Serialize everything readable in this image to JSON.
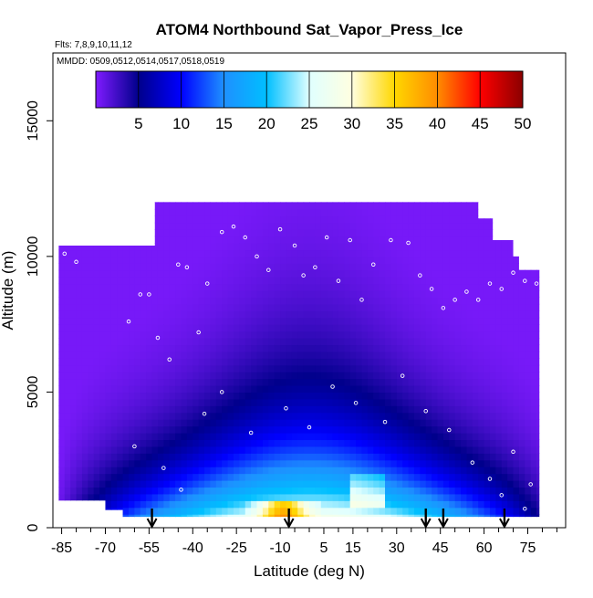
{
  "chart_data": {
    "type": "heatmap",
    "title": "ATOM4 Northbound Sat_Vapor_Press_Ice",
    "flights_label": "Flts: 7,8,9,10,11,12",
    "dates_label": "MMDD: 0509,0512,0514,0517,0518,0519",
    "xlabel": "Latitude (deg N)",
    "ylabel": "Altitude (m)",
    "xlim": [
      -88,
      88
    ],
    "ylim": [
      0,
      17500
    ],
    "x_ticks": [
      -85,
      -70,
      -55,
      -40,
      -25,
      -10,
      5,
      15,
      30,
      45,
      60,
      75
    ],
    "x_minor_ticks": [
      -80,
      -75,
      -65,
      -60,
      -50,
      -45,
      -35,
      -30,
      -20,
      -15,
      -5,
      0,
      10,
      20,
      25,
      35,
      40,
      50,
      55,
      65,
      70,
      80,
      85
    ],
    "y_ticks": [
      0,
      5000,
      10000,
      15000
    ],
    "colorbar": {
      "ticks": [
        5,
        10,
        15,
        20,
        25,
        30,
        35,
        40,
        45,
        50
      ],
      "range": [
        0,
        50
      ],
      "colors": [
        "#7f1bff",
        "#00008b",
        "#0000ff",
        "#1e90ff",
        "#00bfff",
        "#e0ffff",
        "#ffffe0",
        "#ffd700",
        "#ff8c00",
        "#ff0000",
        "#8b0000"
      ]
    },
    "profile_markers_latitude": [
      -54,
      -7,
      40,
      46,
      67
    ],
    "ceiling_profile": [
      [
        -86,
        10400
      ],
      [
        -70,
        10400
      ],
      [
        -55,
        10400
      ],
      [
        -53,
        12000
      ],
      [
        -40,
        12000
      ],
      [
        -25,
        12000
      ],
      [
        -10,
        12000
      ],
      [
        5,
        12000
      ],
      [
        15,
        12000
      ],
      [
        30,
        12000
      ],
      [
        45,
        12000
      ],
      [
        56,
        12000
      ],
      [
        58,
        11400
      ],
      [
        63,
        10600
      ],
      [
        70,
        10000
      ],
      [
        72,
        9500
      ],
      [
        79,
        9500
      ]
    ],
    "floor_profile": [
      [
        -86,
        1000
      ],
      [
        -70,
        1000
      ],
      [
        -64,
        650
      ],
      [
        -53,
        400
      ],
      [
        60,
        400
      ],
      [
        79,
        400
      ]
    ],
    "sample_points": [
      [
        -84,
        10100
      ],
      [
        -80,
        9800
      ],
      [
        -76,
        10500
      ],
      [
        -70,
        10700
      ],
      [
        -62,
        7600
      ],
      [
        -58,
        8600
      ],
      [
        -55,
        8600
      ],
      [
        -52,
        7000
      ],
      [
        -48,
        6200
      ],
      [
        -45,
        9700
      ],
      [
        -42,
        9600
      ],
      [
        -38,
        7200
      ],
      [
        -35,
        9000
      ],
      [
        -30,
        10900
      ],
      [
        -26,
        11100
      ],
      [
        -22,
        10700
      ],
      [
        -18,
        10000
      ],
      [
        -14,
        9500
      ],
      [
        -10,
        11000
      ],
      [
        -5,
        10400
      ],
      [
        -2,
        9300
      ],
      [
        2,
        9600
      ],
      [
        6,
        10700
      ],
      [
        10,
        9100
      ],
      [
        14,
        10600
      ],
      [
        18,
        8400
      ],
      [
        22,
        9700
      ],
      [
        28,
        10600
      ],
      [
        34,
        10500
      ],
      [
        38,
        9300
      ],
      [
        42,
        8800
      ],
      [
        46,
        8100
      ],
      [
        50,
        8400
      ],
      [
        54,
        8700
      ],
      [
        58,
        8400
      ],
      [
        62,
        9000
      ],
      [
        66,
        8800
      ],
      [
        70,
        9400
      ],
      [
        74,
        9100
      ],
      [
        78,
        9000
      ],
      [
        -60,
        3000
      ],
      [
        -50,
        2200
      ],
      [
        -44,
        1400
      ],
      [
        -36,
        4200
      ],
      [
        -30,
        5000
      ],
      [
        -20,
        3500
      ],
      [
        -8,
        4400
      ],
      [
        0,
        3700
      ],
      [
        8,
        5200
      ],
      [
        16,
        4600
      ],
      [
        26,
        3900
      ],
      [
        32,
        5600
      ],
      [
        40,
        4300
      ],
      [
        48,
        3600
      ],
      [
        56,
        2400
      ],
      [
        62,
        1800
      ],
      [
        66,
        1200
      ],
      [
        70,
        2800
      ],
      [
        74,
        700
      ],
      [
        76,
        1600
      ],
      [
        -46,
        300
      ],
      [
        -36,
        300
      ],
      [
        -26,
        300
      ],
      [
        -16,
        300
      ],
      [
        -6,
        300
      ],
      [
        4,
        300
      ],
      [
        14,
        300
      ],
      [
        24,
        300
      ],
      [
        34,
        300
      ],
      [
        44,
        300
      ],
      [
        54,
        300
      ],
      [
        64,
        300
      ],
      [
        72,
        300
      ]
    ]
  }
}
